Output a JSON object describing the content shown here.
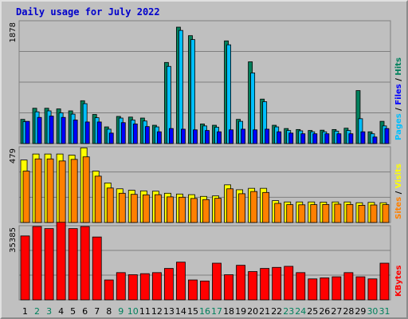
{
  "chart_data": {
    "title": "Daily usage for July 2022",
    "type": "bar",
    "days": [
      "1",
      "2",
      "3",
      "4",
      "5",
      "6",
      "7",
      "8",
      "9",
      "10",
      "11",
      "12",
      "13",
      "14",
      "15",
      "16",
      "17",
      "18",
      "19",
      "20",
      "21",
      "22",
      "23",
      "24",
      "25",
      "26",
      "27",
      "28",
      "29",
      "30",
      "31"
    ],
    "weekend_days": [
      "2",
      "3",
      "9",
      "10",
      "16",
      "17",
      "23",
      "24",
      "30",
      "31"
    ],
    "panels": [
      {
        "name": "hits-files-pages",
        "ymax_label": "1878",
        "ymax": 1878,
        "legend": [
          "Pages",
          "Files",
          "Hits"
        ],
        "series": [
          {
            "name": "Hits",
            "color": "#00805c",
            "values": [
              370,
              540,
              540,
              530,
              500,
              655,
              445,
              255,
              415,
              405,
              390,
              280,
              1240,
              1780,
              1650,
              300,
              280,
              1570,
              370,
              1250,
              680,
              280,
              230,
              215,
              200,
              205,
              215,
              235,
              810,
              180,
              340
            ]
          },
          {
            "name": "Files",
            "color": "#00bfff",
            "values": [
              335,
              485,
              500,
              470,
              450,
              610,
              395,
              220,
              390,
              360,
              345,
              255,
              1180,
              1730,
              1590,
              270,
              250,
              1510,
              340,
              1080,
              640,
              255,
              200,
              195,
              180,
              180,
              190,
              200,
              380,
              150,
              270
            ]
          },
          {
            "name": "Pages",
            "color": "#0000ff",
            "values": [
              340,
              400,
              420,
              400,
              360,
              330,
              330,
              160,
              320,
              300,
              260,
              180,
              230,
              220,
              210,
              200,
              180,
              210,
              220,
              210,
              220,
              180,
              160,
              150,
              150,
              150,
              150,
              150,
              180,
              100,
              230
            ]
          }
        ]
      },
      {
        "name": "visits-sites",
        "ymax_label": "479",
        "ymax": 479,
        "legend": [
          "Sites",
          "Visits"
        ],
        "series": [
          {
            "name": "Visits",
            "color": "#ffff00",
            "values": [
              395,
              433,
              433,
              433,
              426,
              472,
              325,
              250,
              213,
              204,
              200,
              198,
              185,
              180,
              176,
              165,
              168,
              238,
              207,
              216,
              216,
              138,
              130,
              130,
              130,
              129,
              130,
              130,
              125,
              127,
              125
            ]
          },
          {
            "name": "Sites",
            "color": "#ff8000",
            "values": [
              325,
              402,
              402,
              389,
              399,
              415,
              293,
              218,
              185,
              178,
              175,
              176,
              162,
              160,
              152,
              145,
              153,
              213,
              182,
              196,
              190,
              121,
              113,
              112,
              113,
              114,
              116,
              114,
              109,
              111,
              113
            ]
          }
        ]
      },
      {
        "name": "kbytes",
        "ymax_label": "35385",
        "ymax": 35385,
        "legend": [
          "KBytes"
        ],
        "series": [
          {
            "name": "KBytes",
            "color": "#ff0000",
            "values": [
              30500,
              35000,
              34000,
              37000,
              34000,
              35000,
              30000,
              9500,
              13000,
              12000,
              12500,
              13000,
              15000,
              18000,
              9500,
              9000,
              17500,
              12000,
              16500,
              13500,
              15000,
              15500,
              16000,
              13000,
              10000,
              10500,
              11000,
              13000,
              11000,
              10000,
              17500
            ]
          }
        ]
      }
    ]
  }
}
